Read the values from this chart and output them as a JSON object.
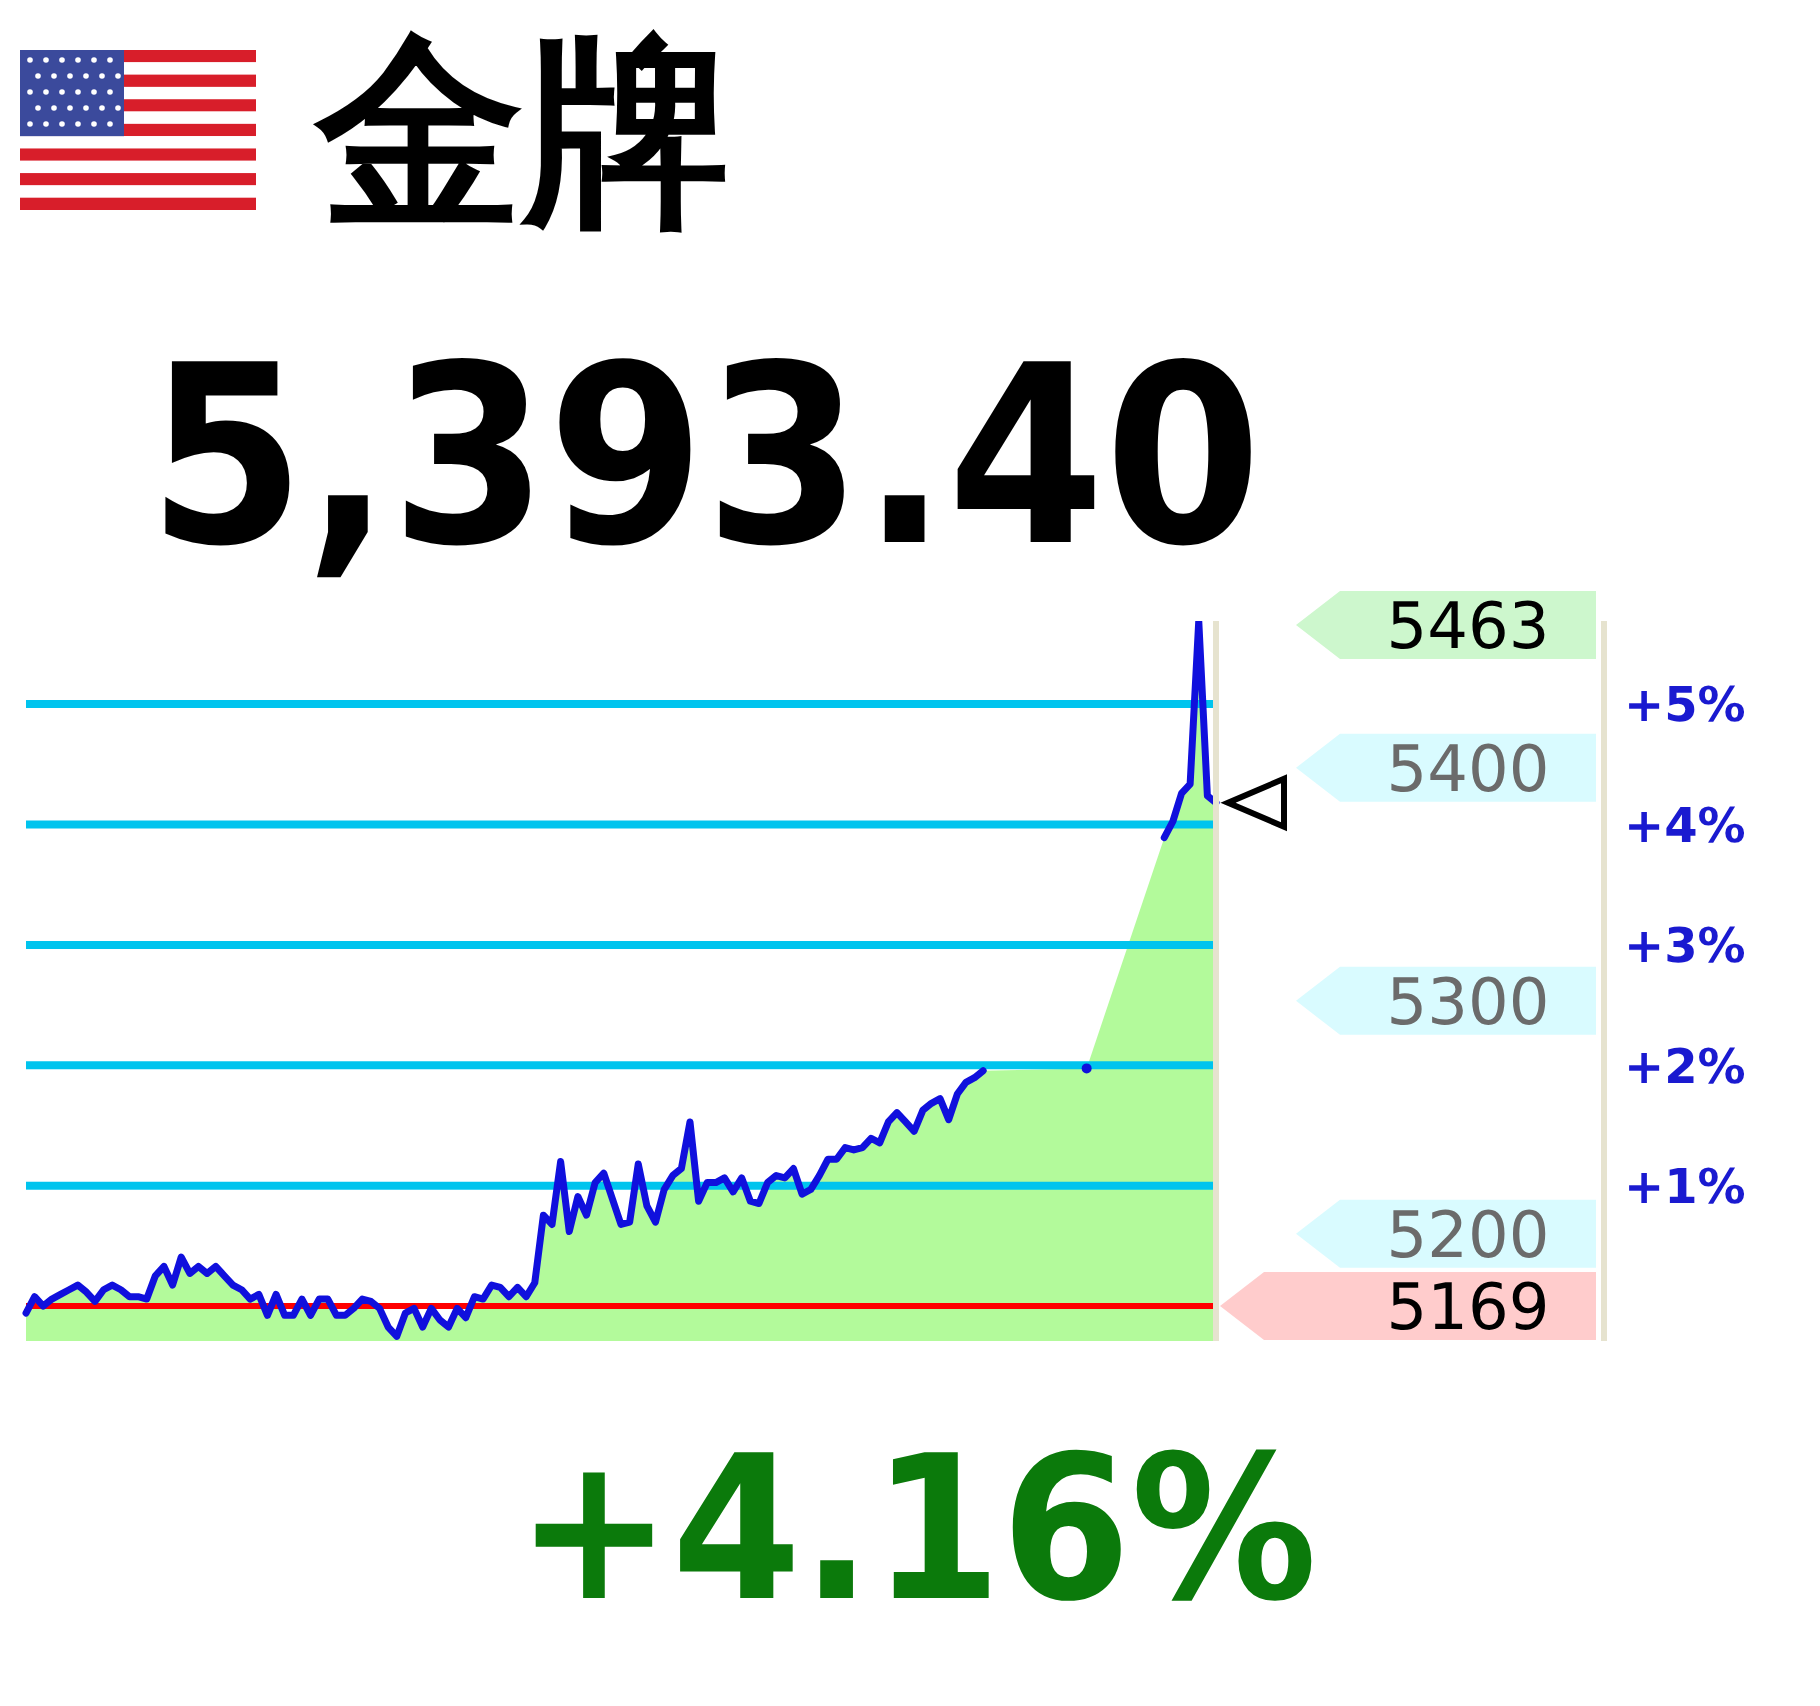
{
  "chart_data": {
    "type": "area",
    "title": "金牌",
    "subtitle": "5,393.40",
    "annotations": [
      "+4.16%",
      "5463"
    ],
    "categories": [
      null,
      null,
      null,
      null,
      null,
      null,
      null,
      null,
      null,
      null,
      null,
      null,
      null,
      null,
      null,
      null,
      null,
      null,
      null,
      null,
      null,
      null,
      null,
      null,
      null,
      null,
      null,
      null,
      null,
      null,
      null,
      null,
      null,
      null,
      null,
      null,
      null,
      null,
      null,
      null,
      null,
      null,
      null,
      null,
      null,
      null,
      null,
      null,
      null,
      null,
      null,
      null,
      null,
      null,
      null,
      null,
      null,
      null,
      null,
      null,
      null,
      null,
      null,
      null,
      null,
      null,
      null,
      null,
      null,
      null,
      null,
      null,
      null,
      null,
      null,
      null,
      null,
      null,
      null,
      null,
      null,
      null,
      null,
      null,
      null,
      null,
      null,
      null,
      null,
      null,
      null,
      null,
      null,
      null,
      null,
      null,
      null,
      null,
      null,
      null,
      null,
      null,
      null,
      null,
      null,
      null,
      null,
      null,
      null,
      null,
      null,
      null,
      null,
      null,
      null,
      null,
      null,
      null,
      null,
      null,
      null,
      null,
      null,
      null,
      null,
      null,
      null,
      null,
      null,
      null,
      null,
      null,
      null,
      null,
      null,
      null,
      null,
      null,
      null
    ],
    "series": [
      {
        "color": "#a6f98a",
        "values": [
          5166,
          5173,
          5169,
          5172,
          5174,
          5176,
          5178,
          5175,
          5171,
          5176,
          5178,
          5176,
          5173,
          5173,
          5172,
          5182,
          5186,
          5178,
          5190,
          5183,
          5186,
          5183,
          5186,
          5182,
          5178,
          5176,
          5172,
          5174,
          5165,
          5174,
          5165,
          5165,
          5172,
          5165,
          5172,
          5172,
          5165,
          5165,
          5168,
          5172,
          5171,
          5168,
          5160,
          5156,
          5166,
          5168,
          5160,
          5168,
          5163,
          5160,
          5168,
          5164,
          5173,
          5172,
          5178,
          5177,
          5173,
          5177,
          5173,
          5179,
          5208,
          5204,
          5231,
          5201,
          5216,
          5208,
          5222,
          5226,
          5215,
          5204,
          5205,
          5230,
          5212,
          5205,
          5219,
          5225,
          5228,
          5248,
          5214,
          5222,
          5222,
          5224,
          5218,
          5224,
          5214,
          5213,
          5222,
          5225,
          5224,
          5228,
          5217,
          5219,
          5225,
          5232,
          5232,
          5237,
          5236,
          5237,
          5241,
          5239,
          5248,
          5252,
          5248,
          5244,
          5253,
          5256,
          5258,
          5249,
          5260,
          5265,
          5267,
          5270,
          null,
          null,
          null,
          null,
          null,
          null,
          null,
          null,
          null,
          null,
          null,
          5271,
          null,
          null,
          null,
          null,
          null,
          null,
          null,
          null,
          5370,
          5377,
          5389,
          5393,
          5463,
          5388,
          5385
        ]
      },
      {
        "type": "line",
        "color": "#1010dd",
        "values": [
          5166,
          5173,
          5169,
          5172,
          5174,
          5176,
          5178,
          5175,
          5171,
          5176,
          5178,
          5176,
          5173,
          5173,
          5172,
          5182,
          5186,
          5178,
          5190,
          5183,
          5186,
          5183,
          5186,
          5182,
          5178,
          5176,
          5172,
          5174,
          5165,
          5174,
          5165,
          5165,
          5172,
          5165,
          5172,
          5172,
          5165,
          5165,
          5168,
          5172,
          5171,
          5168,
          5160,
          5156,
          5166,
          5168,
          5160,
          5168,
          5163,
          5160,
          5168,
          5164,
          5173,
          5172,
          5178,
          5177,
          5173,
          5177,
          5173,
          5179,
          5208,
          5204,
          5231,
          5201,
          5216,
          5208,
          5222,
          5226,
          5215,
          5204,
          5205,
          5230,
          5212,
          5205,
          5219,
          5225,
          5228,
          5248,
          5214,
          5222,
          5222,
          5224,
          5218,
          5224,
          5214,
          5213,
          5222,
          5225,
          5224,
          5228,
          5217,
          5219,
          5225,
          5232,
          5232,
          5237,
          5236,
          5237,
          5241,
          5239,
          5248,
          5252,
          5248,
          5244,
          5253,
          5256,
          5258,
          5249,
          5260,
          5265,
          5267,
          5270,
          null,
          null,
          null,
          null,
          null,
          null,
          null,
          null,
          null,
          null,
          null,
          5271,
          null,
          null,
          null,
          null,
          null,
          null,
          null,
          null,
          5370,
          5377,
          5389,
          5393,
          5463,
          5388,
          5385
        ]
      }
    ],
    "ylim": [
      5154,
      5463
    ],
    "yticks": [
      5200,
      5300,
      5400
    ],
    "y2lim": [
      -0.29,
      5.69
    ],
    "y2ticks": [
      {
        "value": 1,
        "label": "+1%"
      },
      {
        "value": 2,
        "label": "+2%"
      },
      {
        "value": 3,
        "label": "+3%"
      },
      {
        "value": 4,
        "label": "+4%"
      },
      {
        "value": 5,
        "label": "+5%"
      }
    ],
    "tick_labels": "y",
    "ref_lines": [
      {
        "axis": "y",
        "value": 5169,
        "label": "5169",
        "color": "#ff0000"
      },
      {
        "axis": "y2",
        "value": 1,
        "color": "#00c4ee"
      },
      {
        "axis": "y2",
        "value": 2,
        "color": "#00c4ee"
      },
      {
        "axis": "y2",
        "value": 3,
        "color": "#00c4ee"
      },
      {
        "axis": "y2",
        "value": 4,
        "color": "#00c4ee"
      },
      {
        "axis": "y2",
        "value": 5,
        "color": "#00c4ee"
      }
    ]
  }
}
